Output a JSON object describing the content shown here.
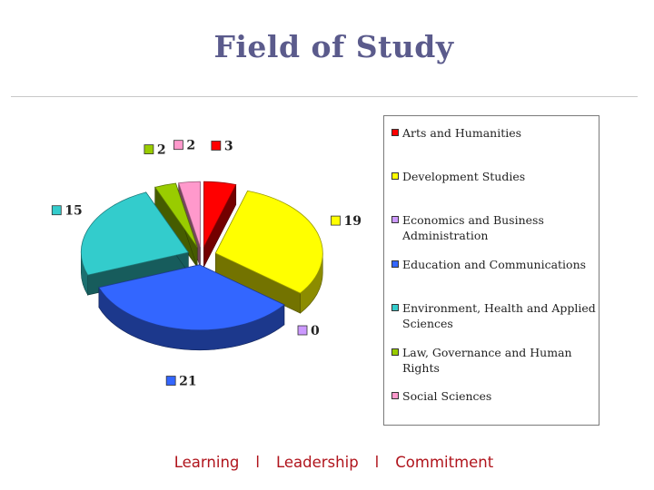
{
  "slide": {
    "title": "Field of Study",
    "footer": {
      "items": [
        "Learning",
        "Leadership",
        "Commitment"
      ],
      "separator": "l"
    }
  },
  "chart_data": {
    "type": "pie",
    "style": "3d-exploded",
    "title": "",
    "categories": [
      "Arts and Humanities",
      "Development Studies",
      "Economics and Business Administration",
      "Education and Communications",
      "Environment, Health and Applied Sciences",
      "Law, Governance and Human Rights",
      "Social Sciences"
    ],
    "values": [
      3,
      19,
      0,
      21,
      15,
      2,
      2
    ],
    "colors": [
      "#ff0000",
      "#ffff00",
      "#cc99ff",
      "#3366ff",
      "#33cccc",
      "#99cc00",
      "#ff99cc"
    ],
    "legend_position": "right"
  }
}
